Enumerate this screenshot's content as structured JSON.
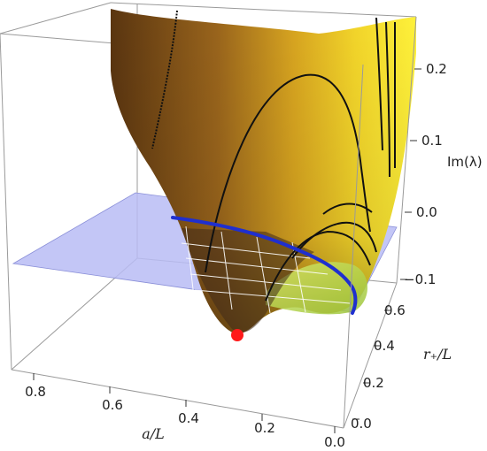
{
  "chart_data": {
    "type": "surface3d",
    "title": "",
    "axes": {
      "x": {
        "label": "a/L",
        "ticks": [
          "0.8",
          "0.6",
          "0.4",
          "0.2",
          "0.0"
        ],
        "range": [
          0.0,
          0.9
        ]
      },
      "y": {
        "label": "r₊/L",
        "ticks": [
          "0.0",
          "0.2",
          "0.4",
          "0.6"
        ],
        "range": [
          0.0,
          0.65
        ]
      },
      "z": {
        "label": "Im(λ)",
        "ticks": [
          "−0.1",
          "0.0",
          "0.1",
          "0.2"
        ],
        "range": [
          -0.15,
          0.25
        ]
      }
    },
    "plane": {
      "z": 0.0,
      "color": "#b8bcf5"
    },
    "curves": {
      "zero_contour_color": "#1f2fcf",
      "mesh_line_color": "#111111"
    },
    "marker": {
      "a": 0.28,
      "r": 0.0,
      "z": -0.15,
      "color": "#ff1a1a"
    },
    "surface_colors": [
      "#6b3b10",
      "#c98a1e",
      "#f2d020",
      "#c8e05a"
    ]
  }
}
